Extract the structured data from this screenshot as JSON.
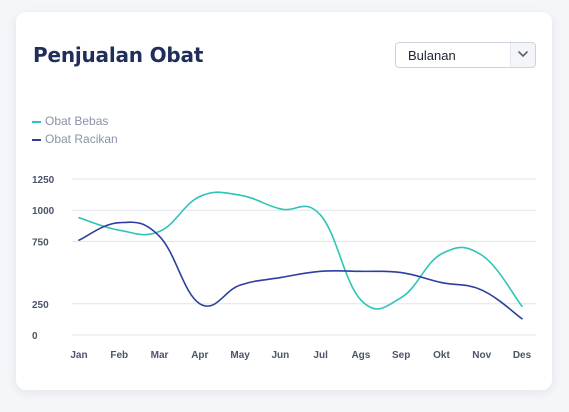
{
  "header": {
    "title": "Penjualan Obat",
    "period_select": {
      "value": "Bulanan",
      "icon": "chevron-down-icon"
    }
  },
  "colors": {
    "obat_bebas": "#2ec4b6",
    "obat_racikan": "#2c3e9e",
    "grid": "#dfe3ea"
  },
  "chart_data": {
    "type": "line",
    "x": [
      "Jan",
      "Feb",
      "Mar",
      "Apr",
      "May",
      "Jun",
      "Jul",
      "Ags",
      "Sep",
      "Okt",
      "Nov",
      "Des"
    ],
    "series": [
      {
        "name": "Obat Bebas",
        "values": [
          940,
          840,
          830,
          1110,
          1120,
          1010,
          960,
          280,
          300,
          650,
          640,
          230
        ]
      },
      {
        "name": "Obat Racikan",
        "values": [
          760,
          900,
          790,
          250,
          400,
          460,
          510,
          510,
          500,
          420,
          360,
          130
        ]
      }
    ],
    "yticks": [
      0,
      250,
      750,
      1000,
      1250
    ],
    "ylim": [
      0,
      1250
    ],
    "grid": true,
    "legend_position": "top-left"
  }
}
